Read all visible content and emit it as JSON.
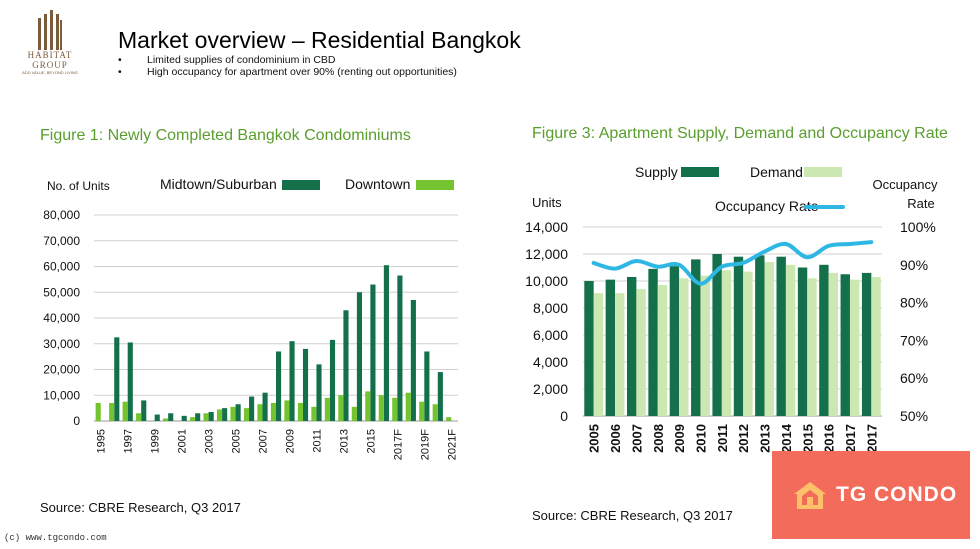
{
  "logo": {
    "line1": "HABITAT",
    "line2": "GROUP",
    "tagline": "ADD VALUE, BEYOND LIVING"
  },
  "header": {
    "title": "Market overview – Residential Bangkok",
    "bullets": [
      "Limited supplies of condominium in CBD",
      "High occupancy for apartment over 90% (renting out opportunities)"
    ]
  },
  "colors": {
    "dark_green": "#13704b",
    "light_green": "#74c42f",
    "pale_green": "#cde7b3",
    "blue": "#2fb7e4",
    "badge": "#f26b5b",
    "title_green": "#5a9e2e"
  },
  "figure1": {
    "title": "Figure 1: Newly Completed Bangkok Condominiums",
    "source": "Source: CBRE Research, Q3 2017"
  },
  "figure3": {
    "title": "Figure 3: Apartment Supply, Demand and Occupancy Rate",
    "source": "Source: CBRE Research, Q3 2017"
  },
  "watermark": {
    "text": "(c) www.tgcondo.com",
    "badge_text": "TG CONDO",
    "badge_icon": "house-logo-icon"
  },
  "chart_data": [
    {
      "type": "bar",
      "title": "Figure 1: Newly Completed Bangkok Condominiums",
      "ylabel": "No. of Units",
      "ylim": [
        0,
        80000
      ],
      "yticks": [
        "0",
        "10,000",
        "20,000",
        "30,000",
        "40,000",
        "50,000",
        "60,000",
        "70,000",
        "80,000"
      ],
      "grid": true,
      "legend_position": "top",
      "categories": [
        "1995",
        "1996",
        "1997",
        "1998",
        "1999",
        "2000",
        "2001",
        "2002",
        "2003",
        "2004",
        "2005",
        "2006",
        "2007",
        "2008",
        "2009",
        "2010",
        "2011",
        "2012",
        "2013",
        "2014",
        "2015",
        "2016",
        "2017F",
        "2018F",
        "2019F",
        "2020F",
        "2021F"
      ],
      "xtick_labels": [
        "1995",
        "",
        "1997",
        "",
        "1999",
        "",
        "2001",
        "",
        "2003",
        "",
        "2005",
        "",
        "2007",
        "",
        "2009",
        "",
        "2011",
        "",
        "2013",
        "",
        "2015",
        "",
        "2017F",
        "",
        "2019F",
        "",
        "2021F"
      ],
      "series": [
        {
          "name": "Midtown/Suburban",
          "color": "#13704b",
          "values": [
            0,
            32500,
            30500,
            8000,
            2500,
            3000,
            2000,
            3000,
            3500,
            5000,
            6500,
            9500,
            11000,
            27000,
            31000,
            28000,
            22000,
            31500,
            43000,
            50000,
            53000,
            60500,
            56500,
            47000,
            27000,
            19000,
            0
          ]
        },
        {
          "name": "Downtown",
          "color": "#74c42f",
          "values": [
            7000,
            7000,
            7500,
            3000,
            0,
            1000,
            0,
            1500,
            3000,
            4500,
            5500,
            5000,
            6500,
            7000,
            8000,
            7000,
            5500,
            9000,
            10000,
            5500,
            11500,
            10000,
            9000,
            11000,
            7500,
            6500,
            1500
          ]
        }
      ]
    },
    {
      "type": "bar",
      "title": "Figure 3: Apartment Supply, Demand and Occupancy Rate",
      "ylabel": "Units",
      "y2label": "Occupancy Rate",
      "ylim": [
        0,
        14000
      ],
      "y2lim": [
        50,
        100
      ],
      "yticks": [
        "0",
        "2,000",
        "4,000",
        "6,000",
        "8,000",
        "10,000",
        "12,000",
        "14,000"
      ],
      "y2ticks": [
        "50%",
        "60%",
        "70%",
        "80%",
        "90%",
        "100%"
      ],
      "grid": true,
      "legend_position": "top",
      "categories": [
        "2005",
        "2006",
        "2007",
        "2008",
        "2009",
        "2010",
        "2011",
        "2012",
        "2013",
        "2014",
        "2015",
        "2016",
        "2017",
        "2017"
      ],
      "series": [
        {
          "name": "Supply",
          "color": "#13704b",
          "values": [
            10000,
            10100,
            10300,
            10900,
            11100,
            11600,
            12000,
            11800,
            11900,
            11800,
            11000,
            11200,
            10500,
            10600
          ]
        },
        {
          "name": "Demand",
          "color": "#cde7b3",
          "values": [
            9100,
            9100,
            9400,
            9700,
            10200,
            10400,
            10800,
            10700,
            11400,
            11200,
            10200,
            10600,
            10100,
            10300
          ]
        },
        {
          "name": "Occupancy Rate",
          "color": "#2fb7e4",
          "type": "line",
          "axis": "right",
          "values": [
            90.5,
            89,
            91,
            89.5,
            90,
            85,
            89.5,
            90.5,
            93.5,
            95.5,
            92,
            95,
            95.5,
            96
          ]
        }
      ]
    }
  ]
}
